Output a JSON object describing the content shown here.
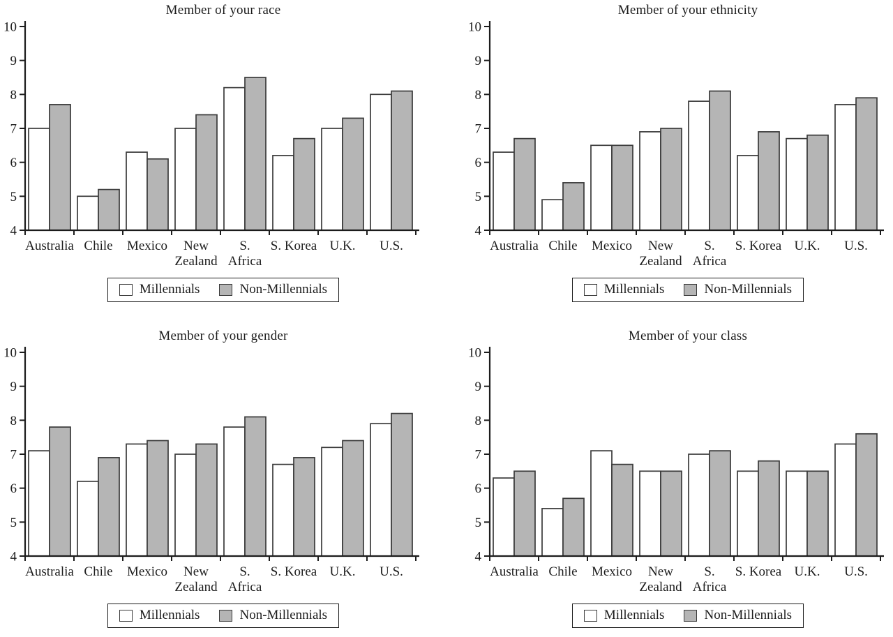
{
  "colors": {
    "background": "#ffffff",
    "axis": "#1c1c1c",
    "text": "#1c1c1c",
    "bar_border": "#3a3a3a",
    "millennials_fill": "#ffffff",
    "non_millennials_fill": "#b5b5b5"
  },
  "chart_data": [
    {
      "type": "bar",
      "title": "Member of your race",
      "categories": [
        "Australia",
        "Chile",
        "Mexico",
        "New Zealand",
        "S. Africa",
        "S. Korea",
        "U.K.",
        "U.S."
      ],
      "categories_lines": [
        [
          "Australia"
        ],
        [
          "Chile"
        ],
        [
          "Mexico"
        ],
        [
          "New",
          "Zealand"
        ],
        [
          "S.",
          "Africa"
        ],
        [
          "S. Korea"
        ],
        [
          "U.K."
        ],
        [
          "U.S."
        ]
      ],
      "series": [
        {
          "name": "Millennials",
          "fill": "#ffffff",
          "values": [
            7.0,
            5.0,
            6.3,
            7.0,
            8.2,
            6.2,
            7.0,
            8.0
          ]
        },
        {
          "name": "Non-Millennials",
          "fill": "#b5b5b5",
          "values": [
            7.7,
            5.2,
            6.1,
            7.4,
            8.5,
            6.7,
            7.3,
            8.1
          ]
        }
      ],
      "xlabel": "",
      "ylabel": "",
      "ylim": [
        4,
        10
      ],
      "yticks": [
        4,
        5,
        6,
        7,
        8,
        9,
        10
      ],
      "grid": false,
      "legend_position": "bottom"
    },
    {
      "type": "bar",
      "title": "Member of your ethnicity",
      "categories": [
        "Australia",
        "Chile",
        "Mexico",
        "New Zealand",
        "S. Africa",
        "S. Korea",
        "U.K.",
        "U.S."
      ],
      "categories_lines": [
        [
          "Australia"
        ],
        [
          "Chile"
        ],
        [
          "Mexico"
        ],
        [
          "New",
          "Zealand"
        ],
        [
          "S.",
          "Africa"
        ],
        [
          "S. Korea"
        ],
        [
          "U.K."
        ],
        [
          "U.S."
        ]
      ],
      "series": [
        {
          "name": "Millennials",
          "fill": "#ffffff",
          "values": [
            6.3,
            4.9,
            6.5,
            6.9,
            7.8,
            6.2,
            6.7,
            7.7
          ]
        },
        {
          "name": "Non-Millennials",
          "fill": "#b5b5b5",
          "values": [
            6.7,
            5.4,
            6.5,
            7.0,
            8.1,
            6.9,
            6.8,
            7.9
          ]
        }
      ],
      "xlabel": "",
      "ylabel": "",
      "ylim": [
        4,
        10
      ],
      "yticks": [
        4,
        5,
        6,
        7,
        8,
        9,
        10
      ],
      "grid": false,
      "legend_position": "bottom"
    },
    {
      "type": "bar",
      "title": "Member of your gender",
      "categories": [
        "Australia",
        "Chile",
        "Mexico",
        "New Zealand",
        "S. Africa",
        "S. Korea",
        "U.K.",
        "U.S."
      ],
      "categories_lines": [
        [
          "Australia"
        ],
        [
          "Chile"
        ],
        [
          "Mexico"
        ],
        [
          "New",
          "Zealand"
        ],
        [
          "S.",
          "Africa"
        ],
        [
          "S. Korea"
        ],
        [
          "U.K.",
          ""
        ],
        [
          "U.S."
        ]
      ],
      "series": [
        {
          "name": "Millennials",
          "fill": "#ffffff",
          "values": [
            7.1,
            6.2,
            7.3,
            7.0,
            7.8,
            6.7,
            7.2,
            7.9
          ]
        },
        {
          "name": "Non-Millennials",
          "fill": "#b5b5b5",
          "values": [
            7.8,
            6.9,
            7.4,
            7.3,
            8.1,
            6.9,
            7.4,
            8.2
          ]
        }
      ],
      "xlabel": "",
      "ylabel": "",
      "ylim": [
        4,
        10
      ],
      "yticks": [
        4,
        5,
        6,
        7,
        8,
        9,
        10
      ],
      "grid": false,
      "legend_position": "bottom"
    },
    {
      "type": "bar",
      "title": "Member of your class",
      "categories": [
        "Australia",
        "Chile",
        "Mexico",
        "New Zealand",
        "S. Africa",
        "S. Korea",
        "U.K.",
        "U.S."
      ],
      "categories_lines": [
        [
          "Australia"
        ],
        [
          "Chile"
        ],
        [
          "Mexico"
        ],
        [
          "New",
          "Zealand"
        ],
        [
          "S.",
          "Africa"
        ],
        [
          "S. Korea"
        ],
        [
          "U.K.",
          ""
        ],
        [
          "U.S."
        ]
      ],
      "series": [
        {
          "name": "Millennials",
          "fill": "#ffffff",
          "values": [
            6.3,
            5.4,
            7.1,
            6.5,
            7.0,
            6.5,
            6.5,
            7.3
          ]
        },
        {
          "name": "Non-Millennials",
          "fill": "#b5b5b5",
          "values": [
            6.5,
            5.7,
            6.7,
            6.5,
            7.1,
            6.8,
            6.5,
            7.6
          ]
        }
      ],
      "xlabel": "",
      "ylabel": "",
      "ylim": [
        4,
        10
      ],
      "yticks": [
        4,
        5,
        6,
        7,
        8,
        9,
        10
      ],
      "grid": false,
      "legend_position": "bottom"
    }
  ]
}
